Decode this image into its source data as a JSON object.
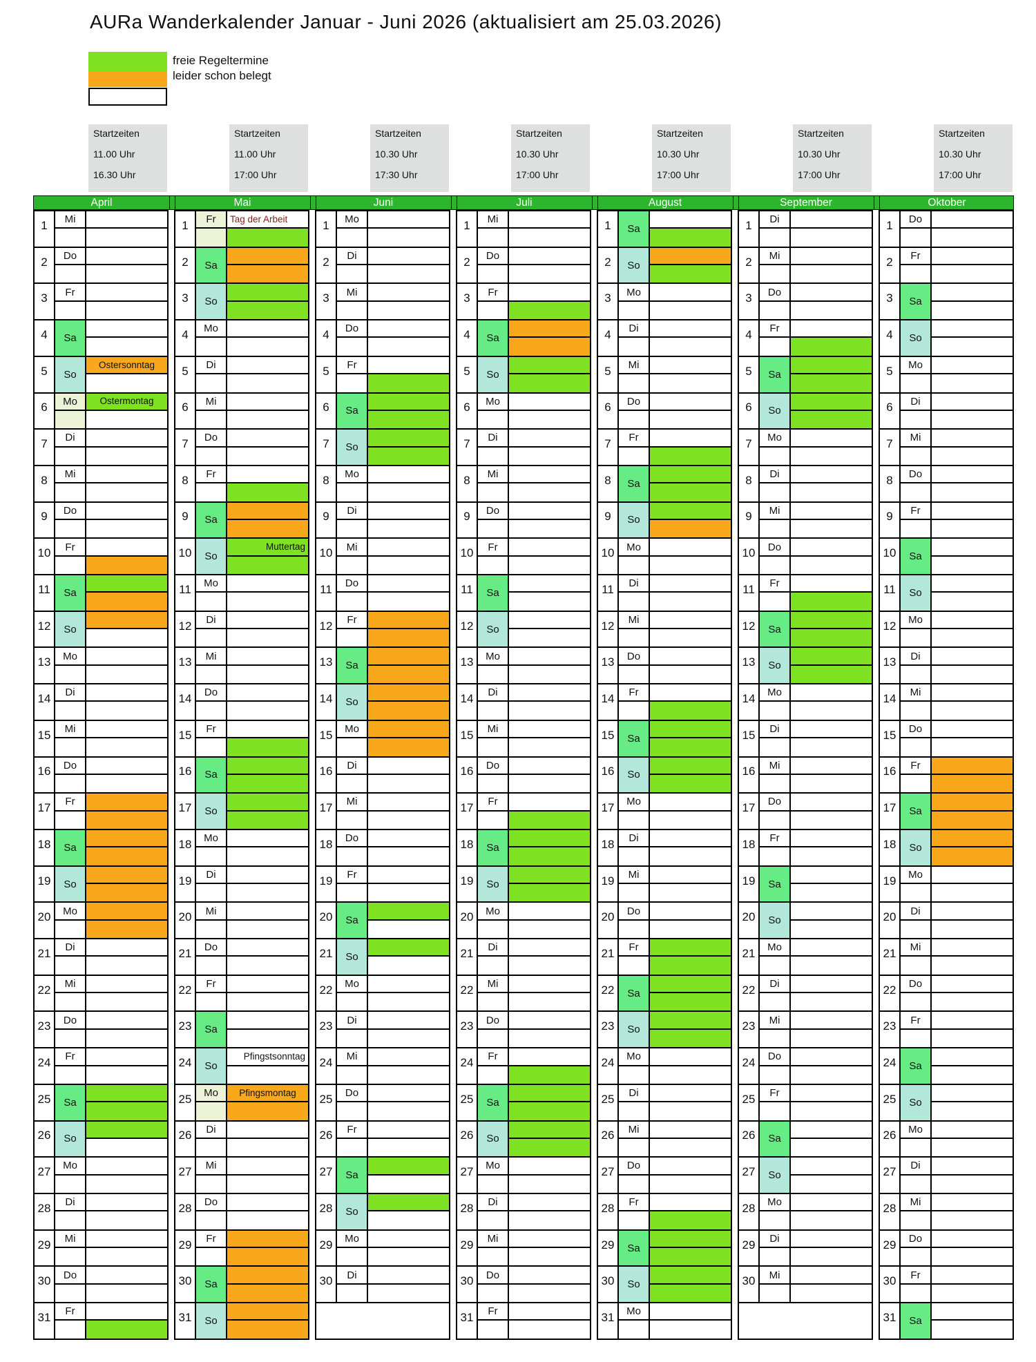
{
  "title": "AURa Wanderkalender Januar - Juni 2026 (aktualisiert am 25.03.2026)",
  "startzeiten_label": "Startzeiten",
  "legend": {
    "items": [
      {
        "label": "freie Regeltermine",
        "color": "#7EE121"
      },
      {
        "label": "leider schon belegt",
        "color": "#F9A81C"
      },
      {
        "label": "",
        "color": "#FFFFFF"
      }
    ]
  },
  "colors": {
    "free": "#7EE121",
    "booked": "#F9A81C",
    "saturday": "#66EB85",
    "sunday": "#B2E7DA",
    "holiday": "#EDF3D7",
    "month_bar": "#2DB52E",
    "header_box": "#DEE0E0",
    "label_red": "#8B1A1A"
  },
  "months": [
    {
      "name": "April",
      "times": [
        "11.00 Uhr",
        "16.30 Uhr"
      ],
      "days": [
        {
          "d": 1,
          "w": "Mi"
        },
        {
          "d": 2,
          "w": "Do"
        },
        {
          "d": 3,
          "w": "Fr"
        },
        {
          "d": 4,
          "w": "Sa"
        },
        {
          "d": 5,
          "w": "So",
          "t": "o",
          "lbl": "Ostersonntag",
          "la": "c"
        },
        {
          "d": 6,
          "w": "Mo",
          "t": "g",
          "lbl": "Ostermontag",
          "la": "c",
          "hol": true
        },
        {
          "d": 7,
          "w": "Di"
        },
        {
          "d": 8,
          "w": "Mi"
        },
        {
          "d": 9,
          "w": "Do"
        },
        {
          "d": 10,
          "w": "Fr",
          "b": "o"
        },
        {
          "d": 11,
          "w": "Sa",
          "t": "g",
          "b": "o"
        },
        {
          "d": 12,
          "w": "So",
          "t": "o"
        },
        {
          "d": 13,
          "w": "Mo"
        },
        {
          "d": 14,
          "w": "Di"
        },
        {
          "d": 15,
          "w": "Mi"
        },
        {
          "d": 16,
          "w": "Do"
        },
        {
          "d": 17,
          "w": "Fr",
          "t": "o",
          "b": "o"
        },
        {
          "d": 18,
          "w": "Sa",
          "t": "o",
          "b": "o"
        },
        {
          "d": 19,
          "w": "So",
          "t": "o",
          "b": "o"
        },
        {
          "d": 20,
          "w": "Mo",
          "t": "o",
          "b": "o"
        },
        {
          "d": 21,
          "w": "Di"
        },
        {
          "d": 22,
          "w": "Mi"
        },
        {
          "d": 23,
          "w": "Do"
        },
        {
          "d": 24,
          "w": "Fr"
        },
        {
          "d": 25,
          "w": "Sa",
          "t": "g",
          "b": "g"
        },
        {
          "d": 26,
          "w": "So",
          "t": "g"
        },
        {
          "d": 27,
          "w": "Mo"
        },
        {
          "d": 28,
          "w": "Di"
        },
        {
          "d": 29,
          "w": "Mi"
        },
        {
          "d": 30,
          "w": "Do"
        },
        {
          "d": 31,
          "w": "Fr",
          "b": "g"
        }
      ]
    },
    {
      "name": "Mai",
      "times": [
        "11.00 Uhr",
        "17:00 Uhr"
      ],
      "days": [
        {
          "d": 1,
          "w": "Fr",
          "b": "g",
          "lbl": "Tag der Arbeit",
          "la": "l",
          "lc": "red",
          "hol": true
        },
        {
          "d": 2,
          "w": "Sa",
          "t": "o",
          "b": "o"
        },
        {
          "d": 3,
          "w": "So",
          "t": "g",
          "b": "g"
        },
        {
          "d": 4,
          "w": "Mo"
        },
        {
          "d": 5,
          "w": "Di"
        },
        {
          "d": 6,
          "w": "Mi"
        },
        {
          "d": 7,
          "w": "Do"
        },
        {
          "d": 8,
          "w": "Fr",
          "b": "g"
        },
        {
          "d": 9,
          "w": "Sa",
          "t": "o",
          "b": "o"
        },
        {
          "d": 10,
          "w": "So",
          "t": "g",
          "b": "g",
          "lbl": "Muttertag",
          "la": "r"
        },
        {
          "d": 11,
          "w": "Mo"
        },
        {
          "d": 12,
          "w": "Di"
        },
        {
          "d": 13,
          "w": "Mi"
        },
        {
          "d": 14,
          "w": "Do"
        },
        {
          "d": 15,
          "w": "Fr",
          "b": "g"
        },
        {
          "d": 16,
          "w": "Sa",
          "t": "g",
          "b": "g"
        },
        {
          "d": 17,
          "w": "So",
          "t": "g",
          "b": "g"
        },
        {
          "d": 18,
          "w": "Mo"
        },
        {
          "d": 19,
          "w": "Di"
        },
        {
          "d": 20,
          "w": "Mi"
        },
        {
          "d": 21,
          "w": "Do"
        },
        {
          "d": 22,
          "w": "Fr"
        },
        {
          "d": 23,
          "w": "Sa"
        },
        {
          "d": 24,
          "w": "So",
          "lbl": "Pfingstsonntag",
          "la": "r"
        },
        {
          "d": 25,
          "w": "Mo",
          "t": "o",
          "b": "o",
          "lbl": "Pfingsmontag",
          "la": "c",
          "hol": true
        },
        {
          "d": 26,
          "w": "Di"
        },
        {
          "d": 27,
          "w": "Mi"
        },
        {
          "d": 28,
          "w": "Do"
        },
        {
          "d": 29,
          "w": "Fr",
          "t": "o",
          "b": "o"
        },
        {
          "d": 30,
          "w": "Sa",
          "t": "o",
          "b": "o"
        },
        {
          "d": 31,
          "w": "So",
          "t": "o",
          "b": "o"
        }
      ]
    },
    {
      "name": "Juni",
      "times": [
        "10.30 Uhr",
        "17:30 Uhr"
      ],
      "blank31": true,
      "days": [
        {
          "d": 1,
          "w": "Mo"
        },
        {
          "d": 2,
          "w": "Di"
        },
        {
          "d": 3,
          "w": "Mi"
        },
        {
          "d": 4,
          "w": "Do"
        },
        {
          "d": 5,
          "w": "Fr",
          "b": "g"
        },
        {
          "d": 6,
          "w": "Sa",
          "t": "g",
          "b": "g"
        },
        {
          "d": 7,
          "w": "So",
          "t": "g",
          "b": "g"
        },
        {
          "d": 8,
          "w": "Mo"
        },
        {
          "d": 9,
          "w": "Di"
        },
        {
          "d": 10,
          "w": "Mi"
        },
        {
          "d": 11,
          "w": "Do"
        },
        {
          "d": 12,
          "w": "Fr",
          "t": "o",
          "b": "o"
        },
        {
          "d": 13,
          "w": "Sa",
          "t": "o",
          "b": "o"
        },
        {
          "d": 14,
          "w": "So",
          "t": "o",
          "b": "o"
        },
        {
          "d": 15,
          "w": "Mo",
          "t": "o",
          "b": "o"
        },
        {
          "d": 16,
          "w": "Di"
        },
        {
          "d": 17,
          "w": "Mi"
        },
        {
          "d": 18,
          "w": "Do"
        },
        {
          "d": 19,
          "w": "Fr"
        },
        {
          "d": 20,
          "w": "Sa",
          "t": "g"
        },
        {
          "d": 21,
          "w": "So",
          "t": "g"
        },
        {
          "d": 22,
          "w": "Mo"
        },
        {
          "d": 23,
          "w": "Di"
        },
        {
          "d": 24,
          "w": "Mi"
        },
        {
          "d": 25,
          "w": "Do"
        },
        {
          "d": 26,
          "w": "Fr"
        },
        {
          "d": 27,
          "w": "Sa",
          "t": "g"
        },
        {
          "d": 28,
          "w": "So",
          "t": "g"
        },
        {
          "d": 29,
          "w": "Mo"
        },
        {
          "d": 30,
          "w": "Di"
        }
      ]
    },
    {
      "name": "Juli",
      "times": [
        "10.30 Uhr",
        "17:00 Uhr"
      ],
      "days": [
        {
          "d": 1,
          "w": "Mi"
        },
        {
          "d": 2,
          "w": "Do"
        },
        {
          "d": 3,
          "w": "Fr",
          "b": "g"
        },
        {
          "d": 4,
          "w": "Sa",
          "t": "o",
          "b": "o"
        },
        {
          "d": 5,
          "w": "So",
          "t": "g",
          "b": "g"
        },
        {
          "d": 6,
          "w": "Mo"
        },
        {
          "d": 7,
          "w": "Di"
        },
        {
          "d": 8,
          "w": "Mi"
        },
        {
          "d": 9,
          "w": "Do"
        },
        {
          "d": 10,
          "w": "Fr"
        },
        {
          "d": 11,
          "w": "Sa"
        },
        {
          "d": 12,
          "w": "So"
        },
        {
          "d": 13,
          "w": "Mo"
        },
        {
          "d": 14,
          "w": "Di"
        },
        {
          "d": 15,
          "w": "Mi"
        },
        {
          "d": 16,
          "w": "Do"
        },
        {
          "d": 17,
          "w": "Fr",
          "b": "g"
        },
        {
          "d": 18,
          "w": "Sa",
          "t": "g",
          "b": "g"
        },
        {
          "d": 19,
          "w": "So",
          "t": "g",
          "b": "g"
        },
        {
          "d": 20,
          "w": "Mo"
        },
        {
          "d": 21,
          "w": "Di"
        },
        {
          "d": 22,
          "w": "Mi"
        },
        {
          "d": 23,
          "w": "Do"
        },
        {
          "d": 24,
          "w": "Fr",
          "b": "g"
        },
        {
          "d": 25,
          "w": "Sa",
          "t": "g",
          "b": "g"
        },
        {
          "d": 26,
          "w": "So",
          "t": "g",
          "b": "g"
        },
        {
          "d": 27,
          "w": "Mo"
        },
        {
          "d": 28,
          "w": "Di"
        },
        {
          "d": 29,
          "w": "Mi"
        },
        {
          "d": 30,
          "w": "Do"
        },
        {
          "d": 31,
          "w": "Fr"
        }
      ]
    },
    {
      "name": "August",
      "times": [
        "10.30 Uhr",
        "17:00 Uhr"
      ],
      "days": [
        {
          "d": 1,
          "w": "Sa",
          "b": "g"
        },
        {
          "d": 2,
          "w": "So",
          "t": "o",
          "b": "g"
        },
        {
          "d": 3,
          "w": "Mo"
        },
        {
          "d": 4,
          "w": "Di"
        },
        {
          "d": 5,
          "w": "Mi"
        },
        {
          "d": 6,
          "w": "Do"
        },
        {
          "d": 7,
          "w": "Fr",
          "b": "g"
        },
        {
          "d": 8,
          "w": "Sa",
          "t": "g",
          "b": "g"
        },
        {
          "d": 9,
          "w": "So",
          "t": "g",
          "b": "o"
        },
        {
          "d": 10,
          "w": "Mo"
        },
        {
          "d": 11,
          "w": "Di"
        },
        {
          "d": 12,
          "w": "Mi"
        },
        {
          "d": 13,
          "w": "Do"
        },
        {
          "d": 14,
          "w": "Fr",
          "b": "g"
        },
        {
          "d": 15,
          "w": "Sa",
          "t": "g",
          "b": "g"
        },
        {
          "d": 16,
          "w": "So",
          "t": "g",
          "b": "g"
        },
        {
          "d": 17,
          "w": "Mo"
        },
        {
          "d": 18,
          "w": "Di"
        },
        {
          "d": 19,
          "w": "Mi"
        },
        {
          "d": 20,
          "w": "Do"
        },
        {
          "d": 21,
          "w": "Fr",
          "t": "g",
          "b": "g"
        },
        {
          "d": 22,
          "w": "Sa",
          "t": "g",
          "b": "g"
        },
        {
          "d": 23,
          "w": "So",
          "t": "g",
          "b": "g"
        },
        {
          "d": 24,
          "w": "Mo"
        },
        {
          "d": 25,
          "w": "Di"
        },
        {
          "d": 26,
          "w": "Mi"
        },
        {
          "d": 27,
          "w": "Do"
        },
        {
          "d": 28,
          "w": "Fr",
          "b": "g"
        },
        {
          "d": 29,
          "w": "Sa",
          "t": "g",
          "b": "g"
        },
        {
          "d": 30,
          "w": "So",
          "t": "g",
          "b": "g"
        },
        {
          "d": 31,
          "w": "Mo"
        }
      ]
    },
    {
      "name": "September",
      "times": [
        "10.30 Uhr",
        "17:00 Uhr"
      ],
      "blank31": true,
      "days": [
        {
          "d": 1,
          "w": "Di"
        },
        {
          "d": 2,
          "w": "Mi"
        },
        {
          "d": 3,
          "w": "Do"
        },
        {
          "d": 4,
          "w": "Fr",
          "b": "g"
        },
        {
          "d": 5,
          "w": "Sa",
          "t": "g",
          "b": "g"
        },
        {
          "d": 6,
          "w": "So",
          "t": "g",
          "b": "g"
        },
        {
          "d": 7,
          "w": "Mo"
        },
        {
          "d": 8,
          "w": "Di"
        },
        {
          "d": 9,
          "w": "Mi"
        },
        {
          "d": 10,
          "w": "Do"
        },
        {
          "d": 11,
          "w": "Fr",
          "b": "g"
        },
        {
          "d": 12,
          "w": "Sa",
          "t": "g",
          "b": "g"
        },
        {
          "d": 13,
          "w": "So",
          "t": "g",
          "b": "g"
        },
        {
          "d": 14,
          "w": "Mo"
        },
        {
          "d": 15,
          "w": "Di"
        },
        {
          "d": 16,
          "w": "Mi"
        },
        {
          "d": 17,
          "w": "Do"
        },
        {
          "d": 18,
          "w": "Fr"
        },
        {
          "d": 19,
          "w": "Sa"
        },
        {
          "d": 20,
          "w": "So"
        },
        {
          "d": 21,
          "w": "Mo"
        },
        {
          "d": 22,
          "w": "Di"
        },
        {
          "d": 23,
          "w": "Mi"
        },
        {
          "d": 24,
          "w": "Do"
        },
        {
          "d": 25,
          "w": "Fr"
        },
        {
          "d": 26,
          "w": "Sa"
        },
        {
          "d": 27,
          "w": "So"
        },
        {
          "d": 28,
          "w": "Mo"
        },
        {
          "d": 29,
          "w": "Di"
        },
        {
          "d": 30,
          "w": "Mi"
        }
      ]
    },
    {
      "name": "Oktober",
      "times": [
        "10.30 Uhr",
        "17:00 Uhr"
      ],
      "days": [
        {
          "d": 1,
          "w": "Do"
        },
        {
          "d": 2,
          "w": "Fr"
        },
        {
          "d": 3,
          "w": "Sa"
        },
        {
          "d": 4,
          "w": "So"
        },
        {
          "d": 5,
          "w": "Mo"
        },
        {
          "d": 6,
          "w": "Di"
        },
        {
          "d": 7,
          "w": "Mi"
        },
        {
          "d": 8,
          "w": "Do"
        },
        {
          "d": 9,
          "w": "Fr"
        },
        {
          "d": 10,
          "w": "Sa"
        },
        {
          "d": 11,
          "w": "So"
        },
        {
          "d": 12,
          "w": "Mo"
        },
        {
          "d": 13,
          "w": "Di"
        },
        {
          "d": 14,
          "w": "Mi"
        },
        {
          "d": 15,
          "w": "Do"
        },
        {
          "d": 16,
          "w": "Fr",
          "t": "o",
          "b": "o"
        },
        {
          "d": 17,
          "w": "Sa",
          "t": "o",
          "b": "o"
        },
        {
          "d": 18,
          "w": "So",
          "t": "o",
          "b": "o"
        },
        {
          "d": 19,
          "w": "Mo"
        },
        {
          "d": 20,
          "w": "Di"
        },
        {
          "d": 21,
          "w": "Mi"
        },
        {
          "d": 22,
          "w": "Do"
        },
        {
          "d": 23,
          "w": "Fr"
        },
        {
          "d": 24,
          "w": "Sa"
        },
        {
          "d": 25,
          "w": "So"
        },
        {
          "d": 26,
          "w": "Mo"
        },
        {
          "d": 27,
          "w": "Di"
        },
        {
          "d": 28,
          "w": "Mi"
        },
        {
          "d": 29,
          "w": "Do"
        },
        {
          "d": 30,
          "w": "Fr"
        },
        {
          "d": 31,
          "w": "Sa"
        }
      ]
    }
  ]
}
